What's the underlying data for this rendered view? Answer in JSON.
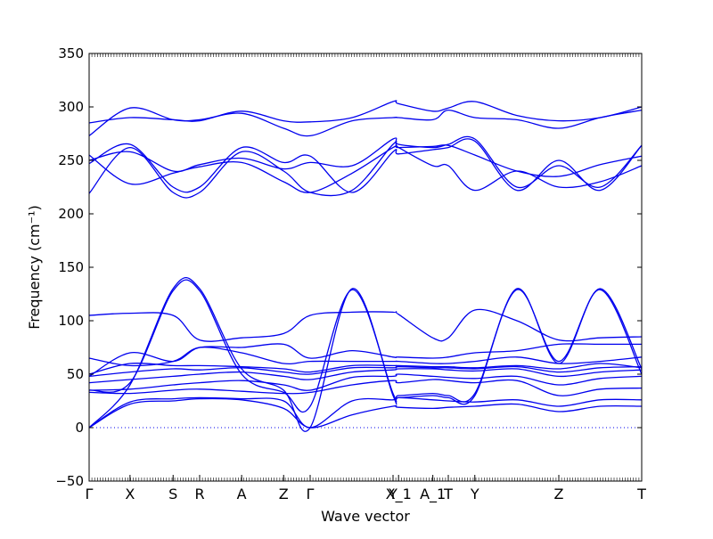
{
  "chart_data": {
    "type": "line",
    "title": "",
    "xlabel": "Wave vector",
    "ylabel": "Frequency (cm⁻¹)",
    "ylim": [
      -50,
      350
    ],
    "yticks": [
      -50,
      0,
      50,
      100,
      150,
      200,
      250,
      300,
      350
    ],
    "grid": false,
    "zero_line": {
      "y": 0,
      "style": "dotted"
    },
    "line_color": "#0000ee",
    "kpoints": [
      {
        "label": "Γ",
        "x": 0.0
      },
      {
        "label": "X",
        "x": 0.074
      },
      {
        "label": "S",
        "x": 0.152
      },
      {
        "label": "R",
        "x": 0.2
      },
      {
        "label": "A",
        "x": 0.276
      },
      {
        "label": "Z",
        "x": 0.352
      },
      {
        "label": "Γ",
        "x": 0.4
      },
      {
        "label": "Y",
        "x": 0.55
      },
      {
        "label": "X_1",
        "x": 0.56
      },
      {
        "label": "A_1",
        "x": 0.622
      },
      {
        "label": "T",
        "x": 0.65
      },
      {
        "label": "Y",
        "x": 0.698
      },
      {
        "label": "Z",
        "x": 0.85
      },
      {
        "label": "T",
        "x": 1.0
      }
    ],
    "series": [
      {
        "x": [
          0,
          0.074,
          0.152,
          0.2,
          0.276,
          0.352,
          0.4,
          0.476,
          0.55,
          0.56,
          0.622,
          0.65,
          0.698,
          0.774,
          0.85,
          0.925,
          1.0
        ],
        "y": [
          0,
          22,
          25,
          27,
          26,
          18,
          0,
          12,
          20,
          19,
          18,
          19,
          20,
          22,
          15,
          20,
          20
        ]
      },
      {
        "x": [
          0,
          0.074,
          0.152,
          0.2,
          0.276,
          0.352,
          0.4,
          0.476,
          0.55,
          0.56,
          0.622,
          0.65,
          0.698,
          0.774,
          0.85,
          0.925,
          1.0
        ],
        "y": [
          0,
          24,
          27,
          28,
          27,
          25,
          0,
          25,
          26,
          28,
          26,
          25,
          24,
          26,
          20,
          26,
          26
        ]
      },
      {
        "x": [
          0,
          0.074,
          0.152,
          0.2,
          0.276,
          0.352,
          0.4,
          0.476,
          0.55,
          0.56,
          0.622,
          0.65,
          0.698,
          0.774,
          0.85,
          0.925,
          1.0
        ],
        "y": [
          33,
          32,
          35,
          36,
          34,
          32,
          33,
          40,
          44,
          42,
          45,
          44,
          42,
          44,
          30,
          36,
          37
        ]
      },
      {
        "x": [
          0,
          0.074,
          0.152,
          0.2,
          0.276,
          0.352,
          0.4,
          0.476,
          0.55,
          0.56,
          0.622,
          0.65,
          0.698,
          0.774,
          0.85,
          0.925,
          1.0
        ],
        "y": [
          35,
          36,
          40,
          42,
          44,
          40,
          35,
          47,
          48,
          50,
          48,
          47,
          46,
          48,
          40,
          46,
          48
        ]
      },
      {
        "x": [
          0,
          0.074,
          0.152,
          0.2,
          0.276,
          0.352,
          0.4,
          0.476,
          0.55,
          0.56,
          0.622,
          0.65,
          0.698,
          0.774,
          0.85,
          0.925,
          1.0
        ],
        "y": [
          42,
          45,
          48,
          50,
          52,
          48,
          45,
          52,
          54,
          55,
          55,
          54,
          53,
          55,
          48,
          52,
          54
        ]
      },
      {
        "x": [
          0,
          0.074,
          0.152,
          0.2,
          0.276,
          0.352,
          0.4,
          0.476,
          0.55,
          0.56,
          0.622,
          0.65,
          0.698,
          0.774,
          0.85,
          0.925,
          1.0
        ],
        "y": [
          48,
          52,
          55,
          54,
          56,
          52,
          50,
          56,
          56,
          57,
          56,
          56,
          55,
          57,
          52,
          56,
          57
        ]
      },
      {
        "x": [
          0,
          0.074,
          0.152,
          0.2,
          0.276,
          0.352,
          0.4,
          0.476,
          0.55,
          0.56,
          0.622,
          0.65,
          0.698,
          0.774,
          0.85,
          0.925,
          1.0
        ],
        "y": [
          50,
          60,
          58,
          58,
          57,
          55,
          52,
          58,
          58,
          58,
          57,
          57,
          56,
          58,
          55,
          60,
          56
        ]
      },
      {
        "x": [
          0,
          0.074,
          0.152,
          0.2,
          0.276,
          0.352,
          0.4,
          0.476,
          0.55,
          0.56,
          0.622,
          0.65,
          0.698,
          0.774,
          0.85,
          0.925,
          1.0
        ],
        "y": [
          65,
          58,
          62,
          75,
          70,
          60,
          62,
          62,
          62,
          62,
          60,
          60,
          62,
          66,
          60,
          62,
          66
        ]
      },
      {
        "x": [
          0,
          0.074,
          0.152,
          0.2,
          0.276,
          0.352,
          0.4,
          0.476,
          0.55,
          0.56,
          0.622,
          0.65,
          0.698,
          0.774,
          0.85,
          0.925,
          1.0
        ],
        "y": [
          48,
          70,
          62,
          75,
          75,
          78,
          65,
          72,
          66,
          66,
          65,
          66,
          70,
          72,
          78,
          78,
          78
        ]
      },
      {
        "x": [
          0,
          0.074,
          0.152,
          0.2,
          0.276,
          0.352,
          0.4,
          0.476,
          0.55,
          0.56,
          0.622,
          0.65,
          0.698,
          0.774,
          0.85,
          0.925,
          1.0
        ],
        "y": [
          105,
          107,
          105,
          82,
          84,
          88,
          105,
          108,
          108,
          106,
          84,
          84,
          110,
          100,
          82,
          84,
          85
        ]
      },
      {
        "x": [
          0,
          0.074,
          0.152,
          0.2,
          0.276,
          0.352,
          0.4,
          0.476,
          0.55,
          0.56,
          0.622,
          0.65,
          0.698,
          0.774,
          0.85,
          0.925,
          1.0
        ],
        "y": [
          0,
          40,
          130,
          130,
          55,
          35,
          0,
          130,
          30,
          28,
          30,
          28,
          30,
          130,
          60,
          130,
          55
        ]
      },
      {
        "x": [
          0,
          0.074,
          0.152,
          0.2,
          0.276,
          0.352,
          0.4,
          0.476,
          0.55,
          0.56,
          0.622,
          0.65,
          0.698,
          0.774,
          0.85,
          0.925,
          1.0
        ],
        "y": [
          35,
          42,
          128,
          128,
          50,
          33,
          20,
          129,
          32,
          30,
          32,
          30,
          32,
          129,
          62,
          129,
          50
        ]
      },
      {
        "x": [
          0,
          0.074,
          0.152,
          0.2,
          0.276,
          0.352,
          0.4,
          0.476,
          0.55,
          0.56,
          0.622,
          0.65,
          0.698,
          0.774,
          0.85,
          0.925,
          1.0
        ],
        "y": [
          219,
          262,
          220,
          220,
          258,
          240,
          220,
          222,
          265,
          262,
          245,
          245,
          222,
          240,
          225,
          230,
          245
        ]
      },
      {
        "x": [
          0,
          0.074,
          0.152,
          0.2,
          0.276,
          0.352,
          0.4,
          0.476,
          0.55,
          0.56,
          0.622,
          0.65,
          0.698,
          0.774,
          0.85,
          0.925,
          1.0
        ],
        "y": [
          247,
          265,
          225,
          225,
          262,
          248,
          254,
          220,
          258,
          256,
          260,
          262,
          268,
          222,
          250,
          222,
          264
        ]
      },
      {
        "x": [
          0,
          0.074,
          0.152,
          0.2,
          0.276,
          0.352,
          0.4,
          0.476,
          0.55,
          0.56,
          0.622,
          0.65,
          0.698,
          0.774,
          0.85,
          0.925,
          1.0
        ],
        "y": [
          250,
          258,
          240,
          246,
          252,
          242,
          248,
          245,
          270,
          265,
          262,
          265,
          270,
          225,
          245,
          225,
          264
        ]
      },
      {
        "x": [
          0,
          0.074,
          0.152,
          0.2,
          0.276,
          0.352,
          0.4,
          0.476,
          0.55,
          0.56,
          0.622,
          0.65,
          0.698,
          0.774,
          0.85,
          0.925,
          1.0
        ],
        "y": [
          255,
          228,
          238,
          244,
          248,
          230,
          220,
          238,
          262,
          262,
          263,
          264,
          255,
          240,
          235,
          246,
          254
        ]
      },
      {
        "x": [
          0,
          0.074,
          0.152,
          0.2,
          0.276,
          0.352,
          0.4,
          0.476,
          0.55,
          0.56,
          0.622,
          0.65,
          0.698,
          0.774,
          0.85,
          0.925,
          1.0
        ],
        "y": [
          273,
          299,
          288,
          288,
          294,
          280,
          273,
          287,
          290,
          290,
          288,
          297,
          290,
          288,
          280,
          290,
          297
        ]
      },
      {
        "x": [
          0,
          0.074,
          0.152,
          0.2,
          0.276,
          0.352,
          0.4,
          0.476,
          0.55,
          0.56,
          0.622,
          0.65,
          0.698,
          0.774,
          0.85,
          0.925,
          1.0
        ],
        "y": [
          285,
          290,
          288,
          287,
          296,
          287,
          286,
          290,
          305,
          303,
          296,
          299,
          305,
          292,
          287,
          290,
          300
        ]
      }
    ]
  }
}
